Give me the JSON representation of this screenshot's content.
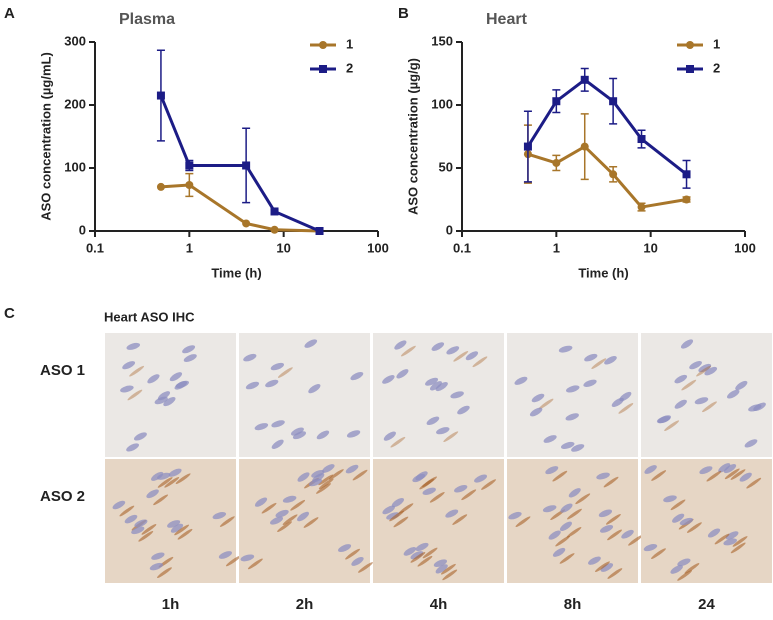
{
  "chart_data": [
    {
      "type": "line",
      "panel_label": "A",
      "title": "Plasma",
      "xlabel": "Time (h)",
      "ylabel": "ASO concentration (µg/mL)",
      "xscale": "log",
      "xlim": [
        0.1,
        100
      ],
      "xticks": [
        0.1,
        1,
        10,
        100
      ],
      "ylim": [
        0,
        300
      ],
      "yticks": [
        0,
        100,
        200,
        300
      ],
      "legend": "upper right",
      "x": [
        0.5,
        1,
        4,
        8,
        24
      ],
      "series": [
        {
          "name": "1",
          "color": "#a8762a",
          "marker": "circle",
          "values": [
            70,
            73,
            12,
            2,
            0
          ],
          "errors": [
            0,
            18,
            0,
            0,
            0
          ]
        },
        {
          "name": "2",
          "color": "#1c1c86",
          "marker": "square",
          "values": [
            215,
            104,
            104,
            31,
            0
          ],
          "errors": [
            72,
            8,
            59,
            3,
            0
          ]
        }
      ]
    },
    {
      "type": "line",
      "panel_label": "B",
      "title": "Heart",
      "xlabel": "Time (h)",
      "ylabel": "ASO concentration (µg/g)",
      "xscale": "log",
      "xlim": [
        0.1,
        100
      ],
      "xticks": [
        0.1,
        1,
        10,
        100
      ],
      "ylim": [
        0,
        150
      ],
      "yticks": [
        0,
        50,
        100,
        150
      ],
      "legend": "upper right",
      "x": [
        0.5,
        1,
        2,
        4,
        8,
        24
      ],
      "series": [
        {
          "name": "1",
          "color": "#a8762a",
          "marker": "circle",
          "values": [
            61,
            54,
            67,
            45,
            19,
            25
          ],
          "errors": [
            23,
            6,
            26,
            6,
            3,
            2
          ]
        },
        {
          "name": "2",
          "color": "#1c1c86",
          "marker": "square",
          "values": [
            67,
            103,
            120,
            103,
            73,
            45
          ],
          "errors": [
            28,
            9,
            9,
            18,
            7,
            11
          ]
        }
      ]
    }
  ],
  "ihc": {
    "panel_label": "C",
    "title": "Heart ASO IHC",
    "rows": [
      "ASO 1",
      "ASO 2"
    ],
    "columns": [
      "1h",
      "2h",
      "4h",
      "8h",
      "24"
    ]
  }
}
